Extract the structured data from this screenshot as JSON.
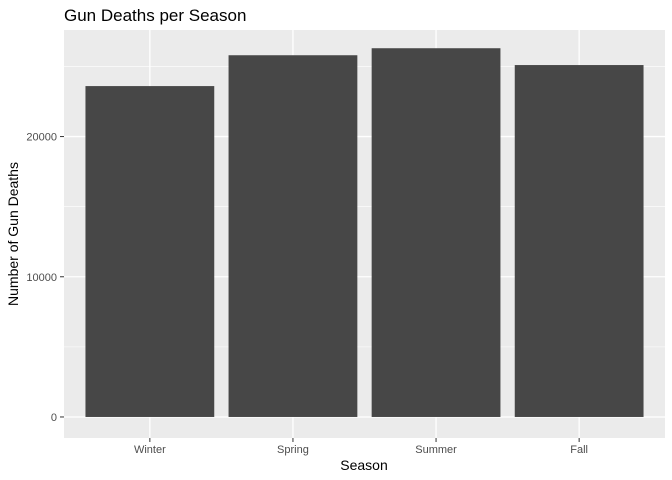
{
  "chart_data": {
    "type": "bar",
    "title": "Gun Deaths per Season",
    "xlabel": "Season",
    "ylabel": "Number of Gun Deaths",
    "categories": [
      "Winter",
      "Spring",
      "Summer",
      "Fall"
    ],
    "values": [
      23600,
      25800,
      26300,
      25100
    ],
    "ylim": [
      -1500,
      27600
    ],
    "yticks": [
      0,
      10000,
      20000
    ],
    "ytick_labels": [
      "0",
      "10000",
      "20000"
    ],
    "grid": true,
    "legend": "none",
    "colors": {
      "panel": "#ebebeb",
      "grid_major": "#ffffff",
      "bar": "#474747",
      "tick_text": "#4d4d4d"
    }
  }
}
